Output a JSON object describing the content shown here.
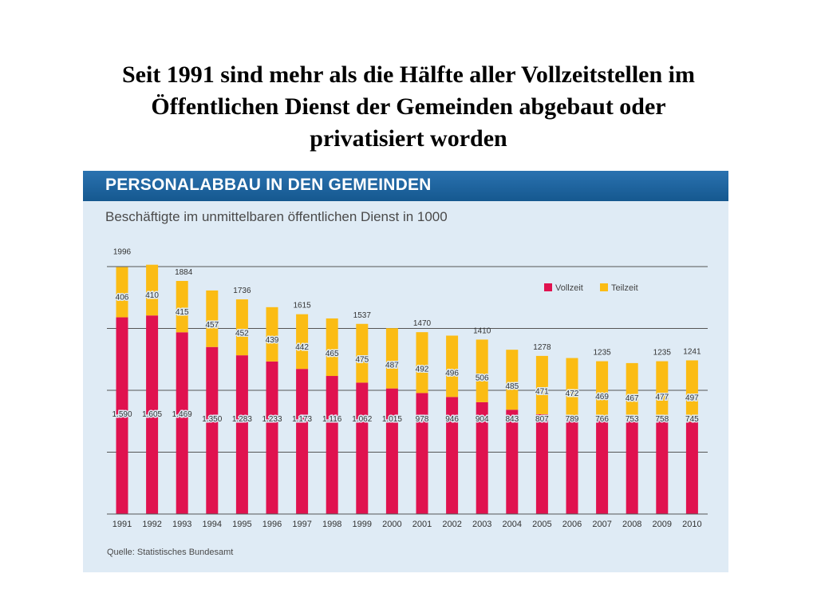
{
  "slide": {
    "title_lines": [
      "Seit 1991 sind mehr als die Hälfte aller Vollzeitstellen im",
      "Öffentlichen Dienst der Gemeinden abgebaut oder",
      "privatisiert worden"
    ]
  },
  "chart_data": {
    "type": "bar",
    "stacked": true,
    "title": "PERSONALABBAU IN DEN GEMEINDEN",
    "subtitle": "Beschäftigte im unmittelbaren öffentlichen Dienst in 1000",
    "source": "Quelle: Statistisches Bundesamt",
    "categories": [
      "1991",
      "1992",
      "1993",
      "1994",
      "1995",
      "1996",
      "1997",
      "1998",
      "1999",
      "2000",
      "2001",
      "2002",
      "2003",
      "2004",
      "2005",
      "2006",
      "2007",
      "2008",
      "2009",
      "2010"
    ],
    "series": [
      {
        "name": "Vollzeit",
        "color": "#e0124f",
        "values": [
          1590,
          1605,
          1469,
          1350,
          1283,
          1233,
          1173,
          1116,
          1062,
          1015,
          978,
          946,
          904,
          843,
          807,
          789,
          766,
          753,
          758,
          745
        ],
        "labels": [
          "1.590",
          "1.605",
          "1.469",
          "1.350",
          "1.283",
          "1.233",
          "1.173",
          "1.116",
          "1.062",
          "1.015",
          "978",
          "946",
          "904",
          "843",
          "807",
          "789",
          "766",
          "753",
          "758",
          "745"
        ]
      },
      {
        "name": "Teilzeit",
        "color": "#fbbc14",
        "values": [
          406,
          410,
          415,
          457,
          452,
          439,
          442,
          465,
          475,
          487,
          492,
          496,
          506,
          485,
          471,
          472,
          469,
          467,
          477,
          497
        ],
        "labels": [
          "406",
          "410",
          "415",
          "457",
          "452",
          "439",
          "442",
          "465",
          "475",
          "487",
          "492",
          "496",
          "506",
          "485",
          "471",
          "472",
          "469",
          "467",
          "477",
          "497"
        ]
      }
    ],
    "total_labels": {
      "1991": "1996",
      "1993": "1884",
      "1995": "1736",
      "1997": "1615",
      "1999": "1537",
      "2001": "1470",
      "2003": "1410",
      "2005": "1278",
      "2007": "1235",
      "2009": "1235",
      "2010": "1241"
    },
    "ylim": [
      0,
      2000
    ],
    "grid": true,
    "legend": "top-right"
  }
}
